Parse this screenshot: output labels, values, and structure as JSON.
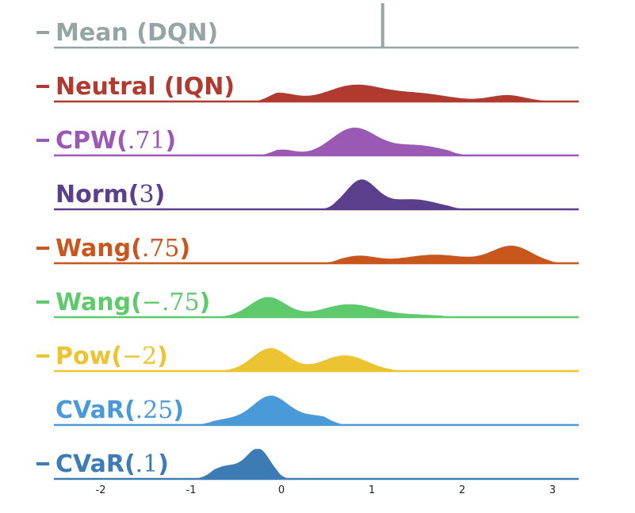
{
  "chart_data": {
    "type": "area",
    "subtype": "ridgeline density",
    "title": "",
    "xlabel": "",
    "ylabel": "",
    "xlim": [
      -2.5,
      3.2
    ],
    "x_ticks": [
      -2,
      -1,
      0,
      1,
      2,
      3
    ],
    "x_tick_labels": [
      "-2",
      "-1",
      "0",
      "1",
      "2",
      "3"
    ],
    "grid": false,
    "legend": "none",
    "series": [
      {
        "name": "Mean (DQN)",
        "label_main": "Mean (DQN)",
        "label_arg": "",
        "label_close": "",
        "color": "#95a5a6",
        "marker": true,
        "kind": "point",
        "value": 1.12,
        "peak": 1.0
      },
      {
        "name": "Neutral (IQN)",
        "label_main": "Neutral (IQN)",
        "label_arg": "",
        "label_close": "",
        "color": "#b03a2e",
        "marker": true,
        "kind": "density",
        "x_range": [
          -0.3,
          3.2
        ],
        "peaks": [
          [
            -0.05,
            0.2,
            0.3
          ],
          [
            0.8,
            0.3,
            0.55
          ],
          [
            1.5,
            0.35,
            0.28
          ],
          [
            2.5,
            0.2,
            0.22
          ]
        ]
      },
      {
        "name": "CPW(.71)",
        "label_main": "CPW(",
        "label_arg": ".71",
        "label_close": ")",
        "color": "#9b59b6",
        "marker": true,
        "kind": "density",
        "x_range": [
          -0.3,
          2.1
        ],
        "peaks": [
          [
            0.0,
            0.15,
            0.2
          ],
          [
            0.8,
            0.25,
            0.95
          ],
          [
            1.5,
            0.3,
            0.35
          ]
        ]
      },
      {
        "name": "Norm(3)",
        "label_main": "Norm(",
        "label_arg": "3",
        "label_close": ")",
        "color": "#5b3f8c",
        "marker": false,
        "kind": "density",
        "x_range": [
          0.35,
          2.1
        ],
        "peaks": [
          [
            0.88,
            0.17,
            1.0
          ],
          [
            1.45,
            0.28,
            0.35
          ]
        ]
      },
      {
        "name": "Wang(.75)",
        "label_main": "Wang(",
        "label_arg": ".75",
        "label_close": ")",
        "color": "#c9571d",
        "marker": true,
        "kind": "density",
        "x_range": [
          0.4,
          3.2
        ],
        "peaks": [
          [
            0.85,
            0.2,
            0.25
          ],
          [
            1.7,
            0.35,
            0.3
          ],
          [
            2.55,
            0.22,
            0.6
          ]
        ]
      },
      {
        "name": "Wang(-.75)",
        "label_main": "Wang(",
        "label_arg": "−.75",
        "label_close": ")",
        "color": "#5fca6b",
        "marker": true,
        "kind": "density",
        "x_range": [
          -1.2,
          2.0
        ],
        "peaks": [
          [
            -0.15,
            0.2,
            0.7
          ],
          [
            0.75,
            0.3,
            0.45
          ],
          [
            1.5,
            0.3,
            0.08
          ]
        ]
      },
      {
        "name": "Pow(-2)",
        "label_main": "Pow(",
        "label_arg": "−2",
        "label_close": ")",
        "color": "#ecc330",
        "marker": true,
        "kind": "density",
        "x_range": [
          -0.8,
          1.45
        ],
        "peaks": [
          [
            -0.12,
            0.2,
            0.8
          ],
          [
            0.7,
            0.25,
            0.55
          ]
        ]
      },
      {
        "name": "CVaR(.25)",
        "label_main": "CVaR(",
        "label_arg": ".25",
        "label_close": ")",
        "color": "#4a9ad9",
        "marker": false,
        "kind": "density",
        "x_range": [
          -1.0,
          0.72
        ],
        "peaks": [
          [
            -0.12,
            0.2,
            1.0
          ],
          [
            0.4,
            0.22,
            0.3
          ],
          [
            -0.6,
            0.2,
            0.18
          ]
        ]
      },
      {
        "name": "CVaR(.1)",
        "label_main": "CVaR(",
        "label_arg": ".1",
        "label_close": ")",
        "color": "#3d7bb5",
        "marker": true,
        "kind": "density",
        "x_range": [
          -1.0,
          0.2
        ],
        "peaks": [
          [
            -0.25,
            0.13,
            1.0
          ],
          [
            -0.6,
            0.18,
            0.45
          ]
        ]
      }
    ]
  }
}
